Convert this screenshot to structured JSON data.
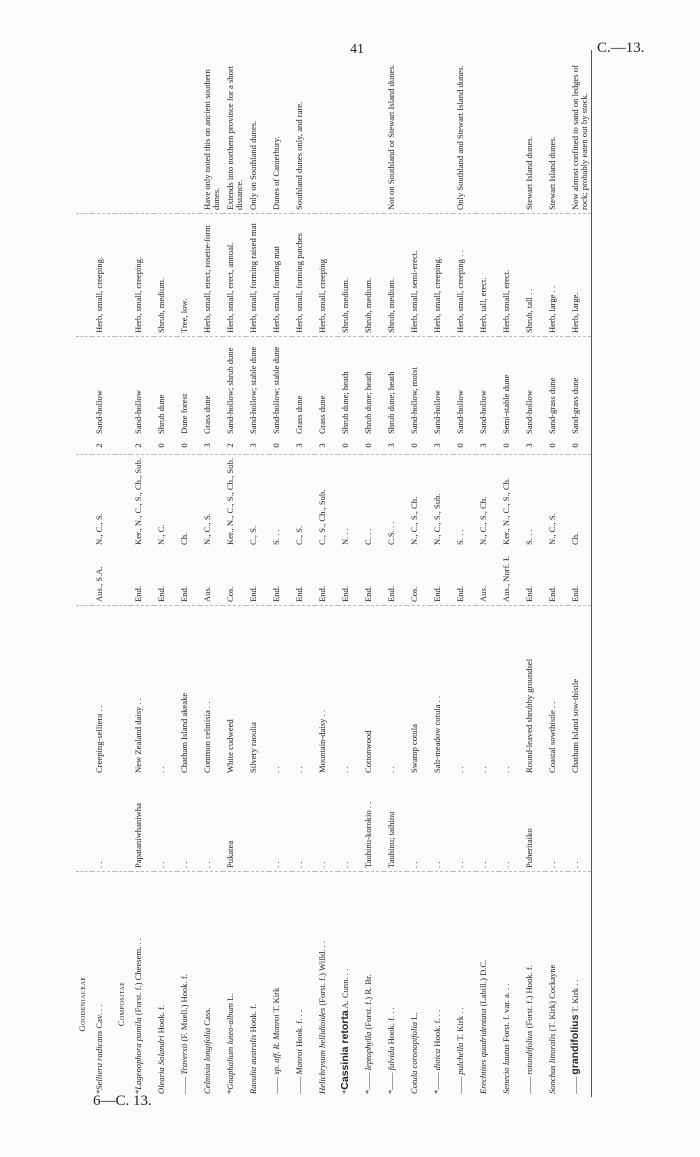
{
  "header": {
    "page_number": "41",
    "code": "C.—13."
  },
  "footer": {
    "code": "6—C. 13."
  },
  "sections": [
    {
      "title": "Goodeniaceae",
      "rows": [
        {
          "prefix": "*",
          "species": "Selliera radicans",
          "author": "Cav. . .",
          "maori": ". .",
          "english": "Creeping-selliera . .",
          "status": "Aus., S.A.",
          "dist": "N., C., S.",
          "num": "2",
          "habitat": "Sand-hollow",
          "form": "Herb, small, creeping.",
          "remarks": "",
          "bold": false
        }
      ]
    },
    {
      "title": "Compositae",
      "rows": [
        {
          "prefix": "*",
          "species": "Lagenophora pumila",
          "author": "(Forst. f.) Cheesem. . .",
          "maori": "Papataniwhaniwha",
          "english": "New Zealand daisy . .",
          "status": "End.",
          "dist": "Ker., N., C., S., Ch., Sub.",
          "num": "2",
          "habitat": "Sand-hollow",
          "form": "Herb, small, creeping.",
          "remarks": "",
          "bold": false
        },
        {
          "prefix": "",
          "species": "Olearia Solandri",
          "author": "Hook. f.",
          "maori": ". .",
          "english": ". .",
          "status": "End.",
          "dist": "N., C.",
          "num": "0",
          "habitat": "Shrub dune",
          "form": "Shrub, medium.",
          "remarks": "",
          "bold": false
        },
        {
          "prefix": "—— ",
          "species": "Traversii",
          "author": "(F. Muell.) Hook. f.",
          "maori": ". .",
          "english": "Chatham Island akeake",
          "status": "End.",
          "dist": "Ch.",
          "num": "0",
          "habitat": "Dune forest",
          "form": "Tree, low.",
          "remarks": "",
          "bold": false
        },
        {
          "prefix": "",
          "species": "Celmisia longifolia",
          "author": "Cass.",
          "maori": ". .",
          "english": "Common celmisia . .",
          "status": "Aus.",
          "dist": "N., C., S.",
          "num": "3",
          "habitat": "Grass dune",
          "form": "Herb, small, erect, rosette-form",
          "remarks": "Have only noted this on ancient southern dunes.",
          "bold": false
        },
        {
          "prefix": "*",
          "species": "Gnaphalium luteo-album",
          "author": "L.",
          "maori": "Pukatea",
          "english": "White cudweed",
          "status": "Cos.",
          "dist": "Ker., N., C., S., Ch., Sub.",
          "num": "2",
          "habitat": "Sand-hollow; shrub dune",
          "form": "Herb, small, erect, annual.",
          "remarks": "Extends into northern province for a short distance.",
          "bold": false
        },
        {
          "prefix": "",
          "species": "Raoulia australis",
          "author": "Hook. f.",
          "maori": "",
          "english": "Silvery raoulia",
          "status": "End.",
          "dist": "C., S.",
          "num": "3",
          "habitat": "Sand-hollow; stable dune",
          "form": "Herb, small, forming raised mat",
          "remarks": "Only on Southland dunes.",
          "bold": false
        },
        {
          "prefix": "—— ",
          "species": "sp. aff. R. Monroi",
          "author": "T. Kirk",
          "maori": ". .",
          "english": ". .",
          "status": "End.",
          "dist": "S. . .",
          "num": "0",
          "habitat": "Sand-hollow; stable dune",
          "form": "Herb, small, forming mat",
          "remarks": "Dunes of Canterbury.",
          "bold": false
        },
        {
          "prefix": "—— ",
          "species": "Monroi",
          "author": "Hook. f. . .",
          "maori": ". .",
          "english": ". .",
          "status": "End.",
          "dist": "C., S.",
          "num": "3",
          "habitat": "Grass dune",
          "form": "Herb, small, forming patches",
          "remarks": "Southland dunes only, and rare.",
          "bold": false
        },
        {
          "prefix": "",
          "species": "Helichrysum bellidioides",
          "author": "(Forst. f.) Willd. . .",
          "maori": ". .",
          "english": "Mountain-daisy . .",
          "status": "End.",
          "dist": "C., S., Ch., Sub.",
          "num": "3",
          "habitat": "Grass dune",
          "form": "Herb, small, creeping",
          "remarks": "",
          "bold": false
        },
        {
          "prefix": "*",
          "species": "Cassinia retorta",
          "author": "A. Cunn. . .",
          "maori": ". .",
          "english": ". .",
          "status": "End.",
          "dist": "N. . .",
          "num": "0",
          "habitat": "Shrub dune; heath",
          "form": "Shrub, medium.",
          "remarks": "",
          "bold": true
        },
        {
          "prefix": "*—— ",
          "species": "leptophylla",
          "author": "(Forst. f.) R. Br.",
          "maori": "Tauhinu-korokio . .",
          "english": "Cottonwood",
          "status": "End.",
          "dist": "C. . .",
          "num": "0",
          "habitat": "Shrub dune; heath",
          "form": "Shrub, medium.",
          "remarks": "",
          "bold": false
        },
        {
          "prefix": "*—— ",
          "species": "fulvida",
          "author": "Hook. f. . .",
          "maori": "Tauhinu; taihinu",
          "english": ". .",
          "status": "End.",
          "dist": "C.S. . .",
          "num": "3",
          "habitat": "Shrub dune; heath",
          "form": "Shrub, medium.",
          "remarks": "Not on Southland or Stewart Island dunes.",
          "bold": false
        },
        {
          "prefix": "",
          "species": "Cotula coronopifolia",
          "author": "L.",
          "maori": ". .",
          "english": "Swamp cotula",
          "status": "Cos.",
          "dist": "N., C., S., Ch.",
          "num": "0",
          "habitat": "Sand-hollow, moist",
          "form": "Herb, small, semi-erect.",
          "remarks": "",
          "bold": false
        },
        {
          "prefix": "*—— ",
          "species": "dioica",
          "author": "Hook. f. . .",
          "maori": ". .",
          "english": "Salt-meadow cotula . .",
          "status": "End.",
          "dist": "N., C., S., Sub.",
          "num": "3",
          "habitat": "Sand-hollow",
          "form": "Herb, small, creeping.",
          "remarks": "",
          "bold": false
        },
        {
          "prefix": "—— ",
          "species": "pulchella",
          "author": "T. Kirk . .",
          "maori": ". .",
          "english": ". .",
          "status": "End.",
          "dist": "S. . .",
          "num": "0",
          "habitat": "Sand-hollow",
          "form": "Herb, small, creeping . .",
          "remarks": "Only Southland and Stewart Island dunes.",
          "bold": false
        },
        {
          "prefix": "",
          "species": "Erechtites quadridentata",
          "author": "(Labill.) D.C.",
          "maori": ". .",
          "english": ". .",
          "status": "Aus.",
          "dist": "N., C., S., Ch.",
          "num": "3",
          "habitat": "Sand-hollow",
          "form": "Herb, tall, erect.",
          "remarks": "",
          "bold": false
        },
        {
          "prefix": "",
          "species": "Senecio lautus",
          "author": "Forst. f. var. a. . .",
          "maori": ". .",
          "english": ". .",
          "status": "Aus., Norf. I.",
          "dist": "Ker., N., C., S., Ch.",
          "num": "0",
          "habitat": "Semi-stable dune",
          "form": "Herb, small, erect.",
          "remarks": "",
          "bold": false
        },
        {
          "prefix": "—— ",
          "species": "rotundifolius",
          "author": "(Forst. f.) Hook. f.",
          "maori": "Puheritaiko",
          "english": "Round-leaved shrubby groundsel",
          "status": "End.",
          "dist": "S. . .",
          "num": "3",
          "habitat": "Sand-hollow",
          "form": "Shrub, tall . .",
          "remarks": "Stewart Island dunes.",
          "bold": false
        },
        {
          "prefix": "",
          "species": "Sonchus littoralis",
          "author": "(T. Kirk) Cockayne",
          "maori": ". .",
          "english": "Coastal sowthistle . .",
          "status": "End.",
          "dist": "N., C., S.",
          "num": "0",
          "habitat": "Sand-grass dune",
          "form": "Herb, large . .",
          "remarks": "Stewart Island dunes.",
          "bold": false
        },
        {
          "prefix": "—— ",
          "species": "grandifolius",
          "author": "T. Kirk . .",
          "maori": ". .",
          "english": "Chatham Island sow-thistle",
          "status": "End.",
          "dist": "Ch.",
          "num": "0",
          "habitat": "Sand-grass dune",
          "form": "Herb, large.",
          "remarks": "Now almost confined to sand on ledges of rock; probably eaten out by stock.",
          "bold": true
        }
      ]
    }
  ]
}
